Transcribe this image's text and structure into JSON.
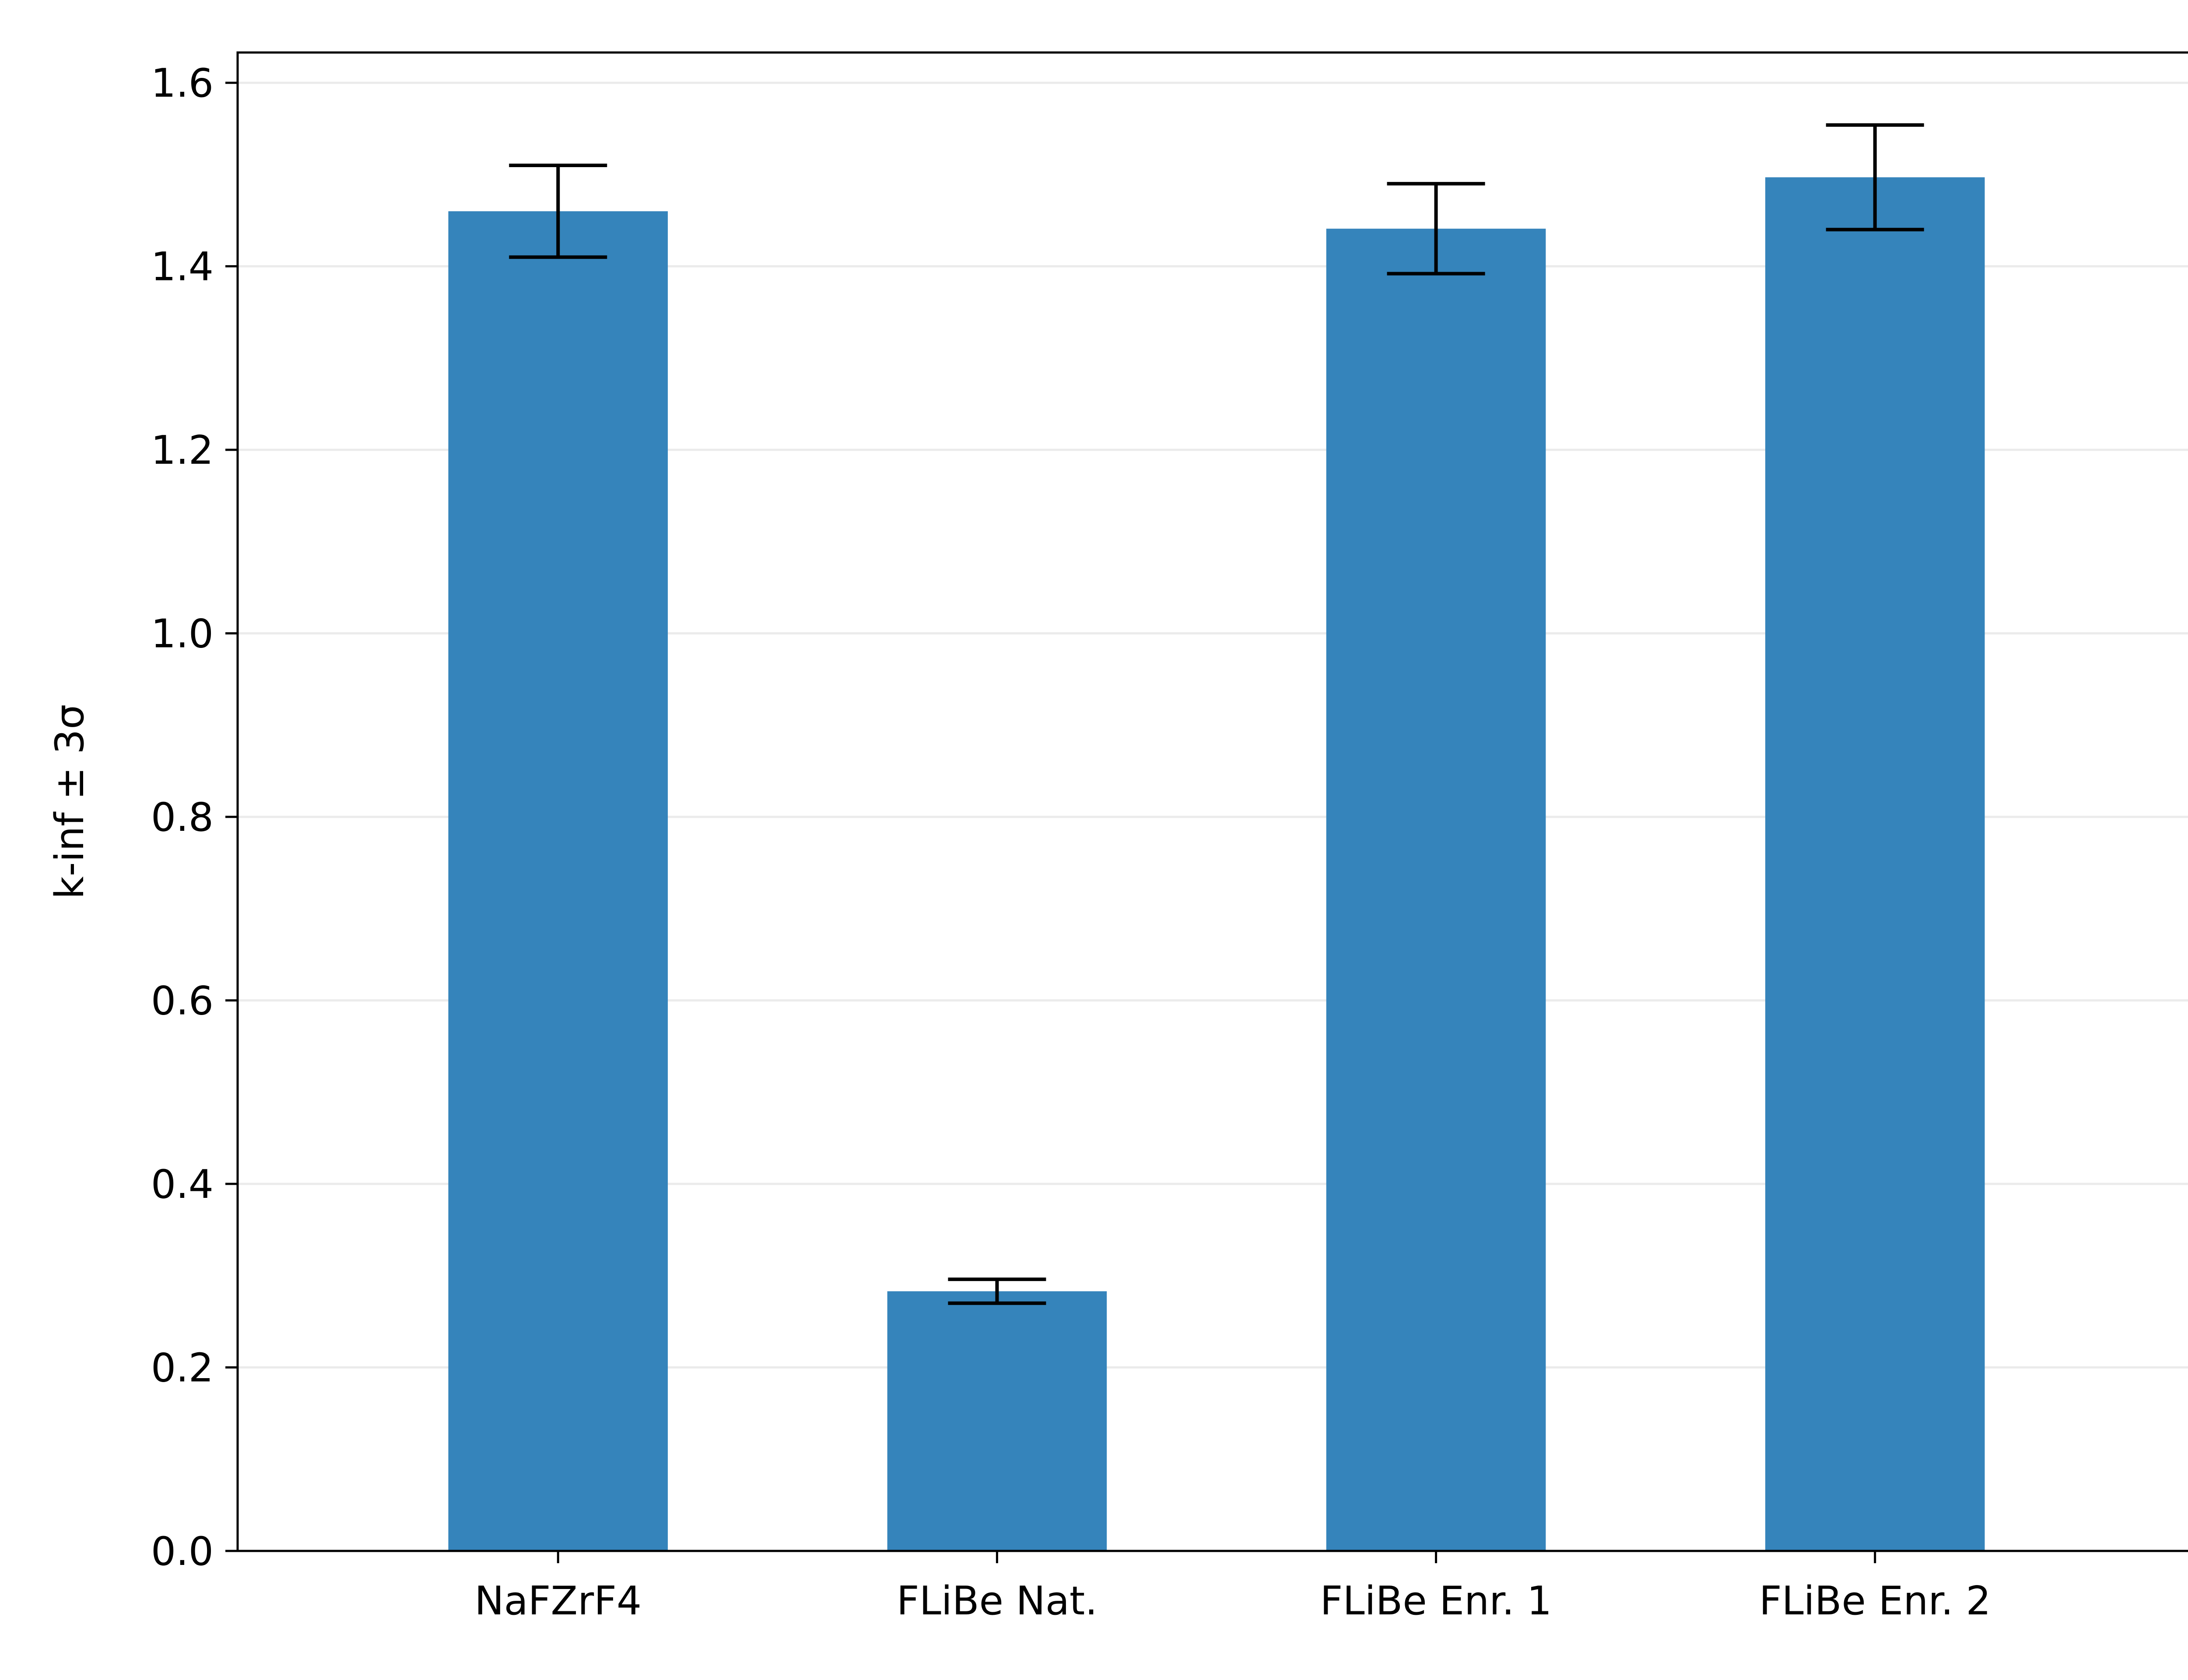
{
  "colors": {
    "bar": "#3584bb",
    "grid": "#ebebeb",
    "axis": "#000000",
    "error": "#000000"
  },
  "chart_data": {
    "type": "bar",
    "title": "",
    "xlabel": "",
    "ylabel": "k-inf ± 3σ",
    "categories": [
      "NaFZrF4",
      "FLiBe Nat.",
      "FLiBe Enr. 1",
      "FLiBe Enr. 2"
    ],
    "values": [
      1.46,
      0.283,
      1.441,
      1.497
    ],
    "errors": [
      0.05,
      0.013,
      0.049,
      0.057
    ],
    "ylim": [
      0,
      1.633
    ],
    "yticks": [
      0.0,
      0.2,
      0.4,
      0.6,
      0.8,
      1.0,
      1.2,
      1.4,
      1.6
    ],
    "ytick_labels": [
      "0.0",
      "0.2",
      "0.4",
      "0.6",
      "0.8",
      "1.0",
      "1.2",
      "1.4",
      "1.6"
    ],
    "grid": "y",
    "legend": "none"
  }
}
